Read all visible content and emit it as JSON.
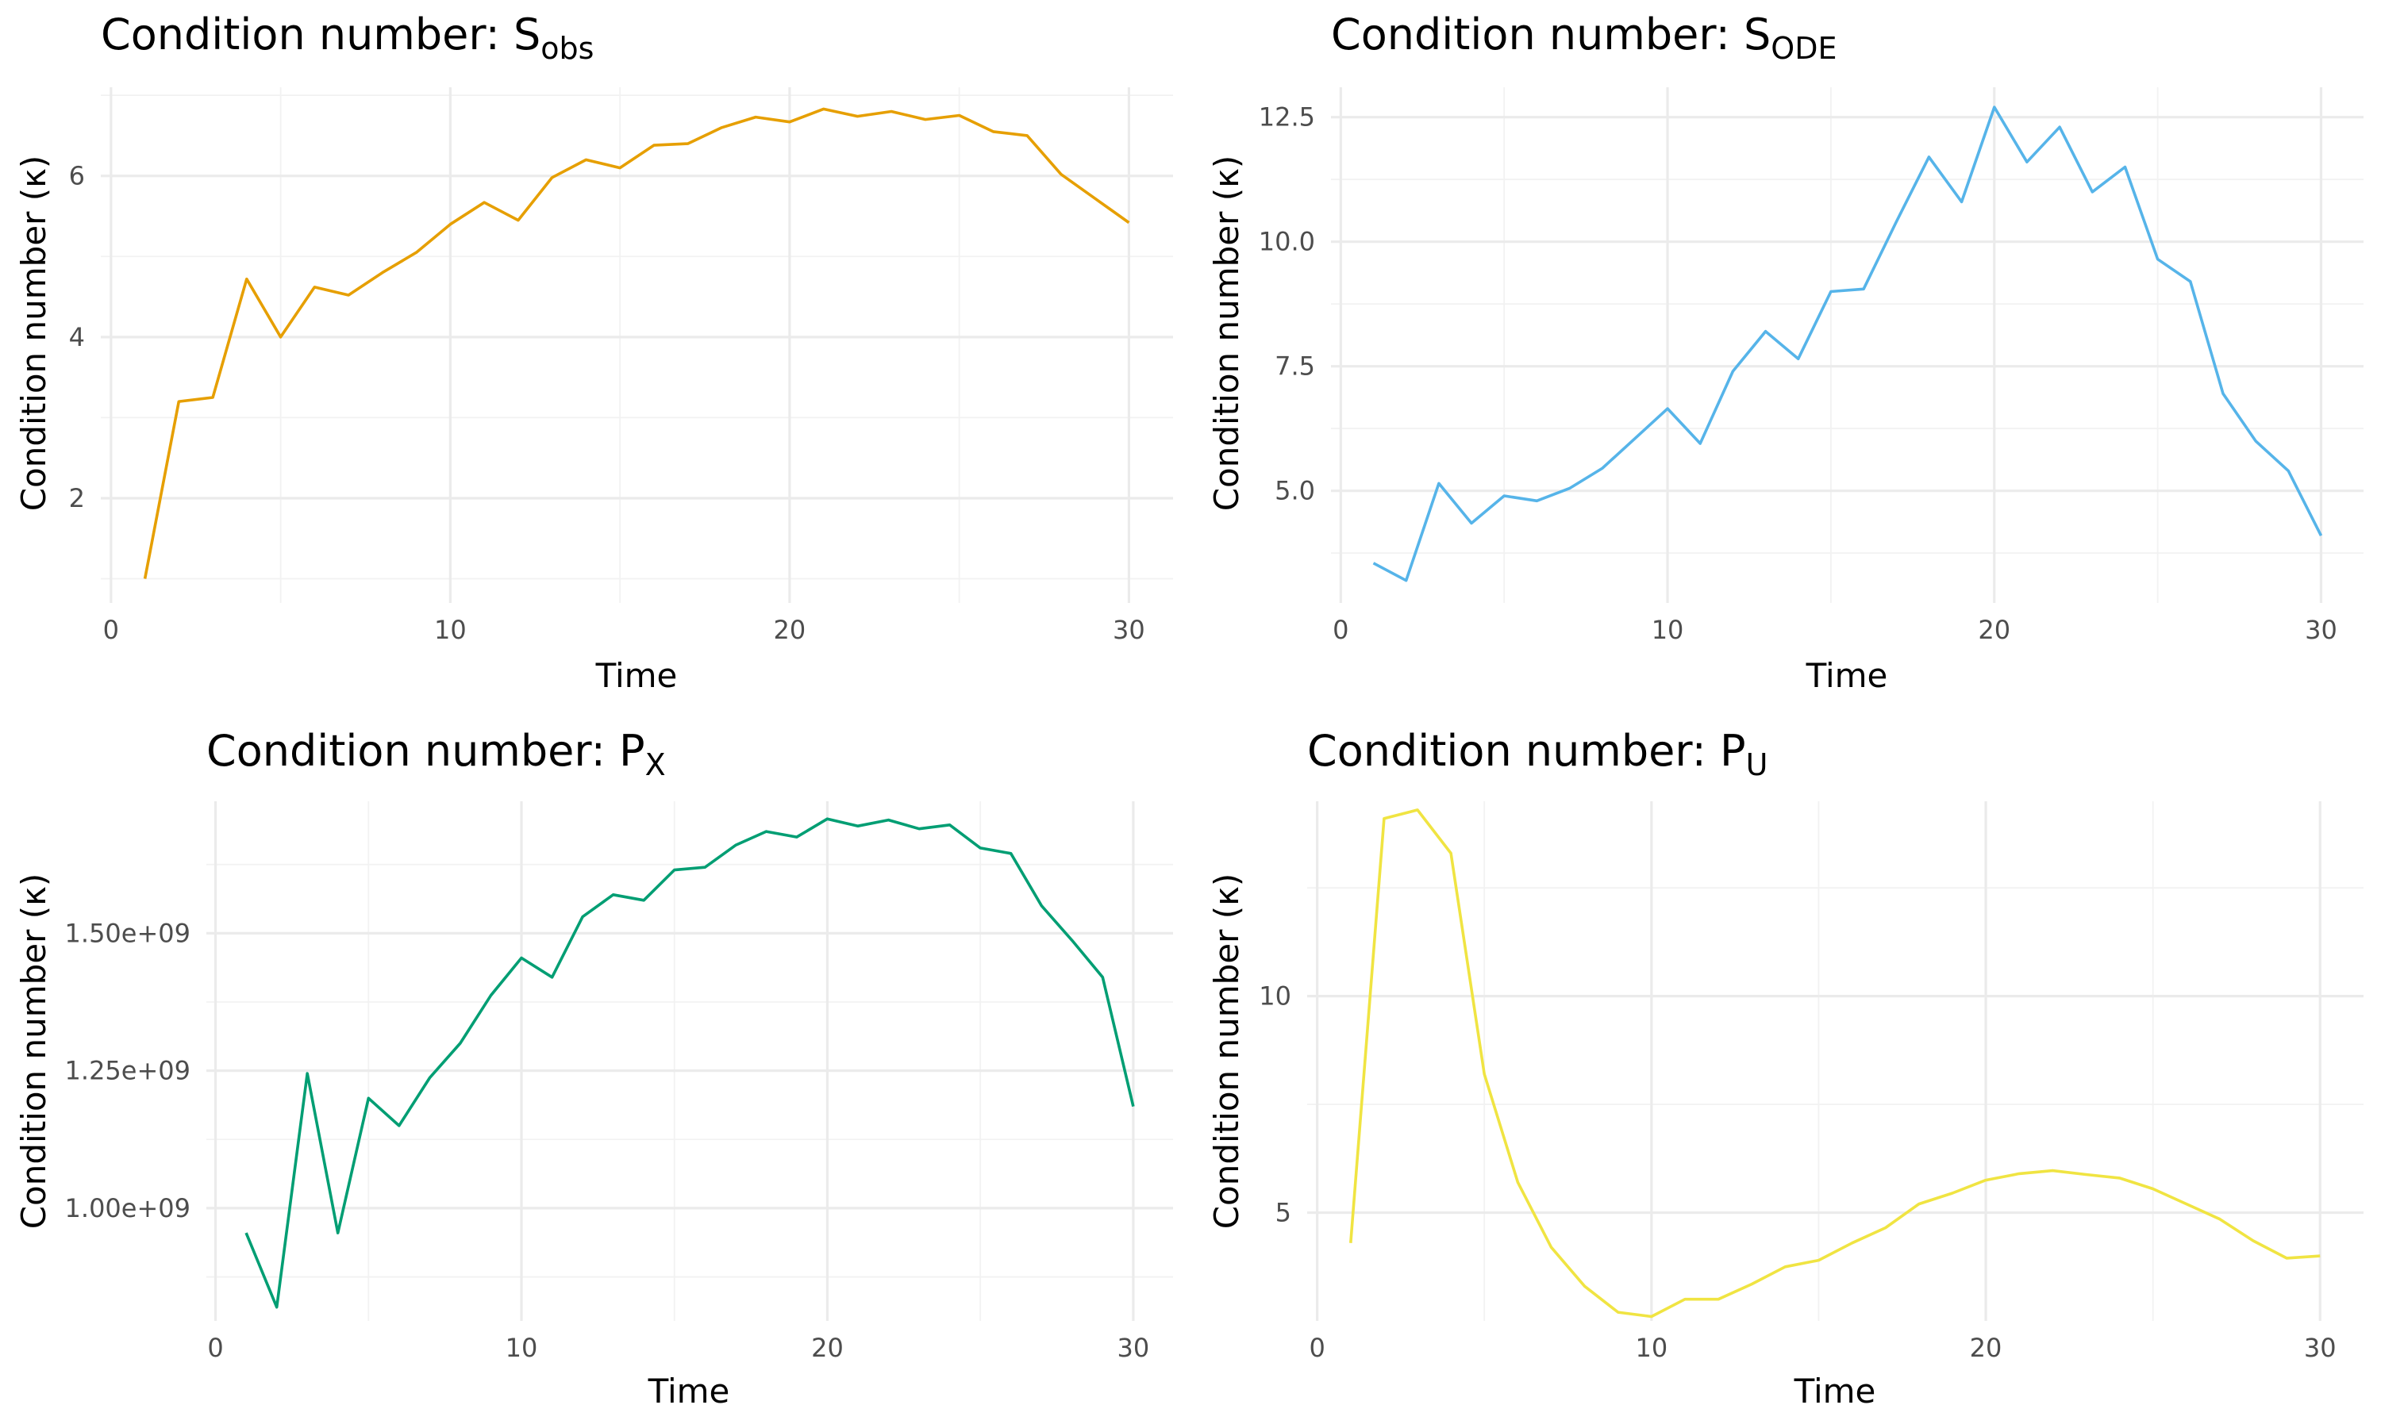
{
  "panels": [
    {
      "title": {
        "main": "Condition number: S",
        "sub": "obs"
      },
      "chart_data": {
        "type": "line",
        "title": "Condition number: Sobs",
        "xlabel": "Time",
        "ylabel": "Condition number (κ)",
        "x": [
          1,
          2,
          3,
          4,
          5,
          6,
          7,
          8,
          9,
          10,
          11,
          12,
          13,
          14,
          15,
          16,
          17,
          18,
          19,
          20,
          21,
          22,
          23,
          24,
          25,
          26,
          27,
          28,
          29,
          30
        ],
        "series": [
          {
            "color": "#E69F00",
            "values": [
              1.0,
              3.2,
              3.25,
              4.72,
              4.0,
              4.62,
              4.52,
              4.8,
              5.05,
              5.4,
              5.67,
              5.45,
              5.98,
              6.2,
              6.1,
              6.38,
              6.4,
              6.6,
              6.73,
              6.67,
              6.83,
              6.74,
              6.8,
              6.7,
              6.75,
              6.55,
              6.5,
              6.02,
              5.72,
              5.42
            ]
          }
        ],
        "xlim": [
          -0.3,
          31.3
        ],
        "ylim": [
          0.7,
          7.1
        ],
        "xticks": [
          0,
          10,
          20,
          30
        ],
        "xtick_labels": [
          "0",
          "10",
          "20",
          "30"
        ],
        "yticks": [
          2,
          4,
          6
        ],
        "ytick_labels": [
          "2",
          "4",
          "6"
        ],
        "grid": true,
        "legend": "none"
      }
    },
    {
      "title": {
        "main": "Condition number: S",
        "sub": "ODE"
      },
      "chart_data": {
        "type": "line",
        "title": "Condition number: SODE",
        "xlabel": "Time",
        "ylabel": "Condition number (κ)",
        "x": [
          1,
          2,
          3,
          4,
          5,
          6,
          7,
          8,
          9,
          10,
          11,
          12,
          13,
          14,
          15,
          16,
          17,
          18,
          19,
          20,
          21,
          22,
          23,
          24,
          25,
          26,
          27,
          28,
          29,
          30
        ],
        "series": [
          {
            "color": "#56B4E9",
            "values": [
              3.55,
              3.2,
              5.15,
              4.35,
              4.9,
              4.8,
              5.05,
              5.45,
              6.05,
              6.65,
              5.95,
              7.4,
              8.2,
              7.65,
              9.0,
              9.05,
              10.4,
              11.7,
              10.8,
              12.7,
              11.6,
              12.3,
              11.0,
              11.5,
              9.65,
              9.2,
              6.95,
              6.0,
              5.4,
              4.1
            ]
          }
        ],
        "xlim": [
          -0.3,
          31.3
        ],
        "ylim": [
          2.75,
          13.1
        ],
        "xticks": [
          0,
          10,
          20,
          30
        ],
        "xtick_labels": [
          "0",
          "10",
          "20",
          "30"
        ],
        "yticks": [
          5.0,
          7.5,
          10.0,
          12.5
        ],
        "ytick_labels": [
          "5.0",
          "7.5",
          "10.0",
          "12.5"
        ],
        "grid": true,
        "legend": "none"
      }
    },
    {
      "title": {
        "main": "Condition number: P",
        "sub": "X"
      },
      "chart_data": {
        "type": "line",
        "title": "Condition number: PX",
        "xlabel": "Time",
        "ylabel": "Condition number (κ)",
        "x": [
          1,
          2,
          3,
          4,
          5,
          6,
          7,
          8,
          9,
          10,
          11,
          12,
          13,
          14,
          15,
          16,
          17,
          18,
          19,
          20,
          21,
          22,
          23,
          24,
          25,
          26,
          27,
          28,
          29,
          30
        ],
        "series": [
          {
            "color": "#009E73",
            "values": [
              955000000,
              820000000,
              1245000000,
              955000000,
              1200000000,
              1150000000,
              1237000000,
              1300000000,
              1387000000,
              1455000000,
              1420000000,
              1530000000,
              1570000000,
              1560000000,
              1615000000,
              1620000000,
              1660000000,
              1685000000,
              1675000000,
              1708000000,
              1695000000,
              1706000000,
              1690000000,
              1697000000,
              1655000000,
              1645000000,
              1550000000,
              1487000000,
              1420000000,
              1185000000
            ]
          }
        ],
        "xlim": [
          -0.3,
          31.3
        ],
        "ylim": [
          795000000,
          1740000000
        ],
        "xticks": [
          0,
          10,
          20,
          30
        ],
        "xtick_labels": [
          "0",
          "10",
          "20",
          "30"
        ],
        "yticks": [
          1000000000,
          1250000000,
          1500000000
        ],
        "ytick_labels": [
          "1.00e+09",
          "1.25e+09",
          "1.50e+09"
        ],
        "grid": true,
        "legend": "none"
      }
    },
    {
      "title": {
        "main": "Condition number: P",
        "sub": "U"
      },
      "chart_data": {
        "type": "line",
        "title": "Condition number: PU",
        "xlabel": "Time",
        "ylabel": "Condition number (κ)",
        "x": [
          1,
          2,
          3,
          4,
          5,
          6,
          7,
          8,
          9,
          10,
          11,
          12,
          13,
          14,
          15,
          16,
          17,
          18,
          19,
          20,
          21,
          22,
          23,
          24,
          25,
          26,
          27,
          28,
          29,
          30
        ],
        "series": [
          {
            "color": "#F0E442",
            "values": [
              4.3,
              14.1,
              14.3,
              13.3,
              8.2,
              5.7,
              4.2,
              3.3,
              2.7,
              2.6,
              3.0,
              3.0,
              3.35,
              3.75,
              3.9,
              4.3,
              4.65,
              5.2,
              5.45,
              5.75,
              5.9,
              5.97,
              5.88,
              5.8,
              5.55,
              5.2,
              4.85,
              4.35,
              3.95,
              4.0
            ]
          }
        ],
        "xlim": [
          -0.3,
          31.3
        ],
        "ylim": [
          2.5,
          14.5
        ],
        "xticks": [
          0,
          10,
          20,
          30
        ],
        "xtick_labels": [
          "0",
          "10",
          "20",
          "30"
        ],
        "yticks": [
          5,
          10
        ],
        "ytick_labels": [
          "5",
          "10"
        ],
        "grid": true,
        "legend": "none"
      }
    }
  ]
}
